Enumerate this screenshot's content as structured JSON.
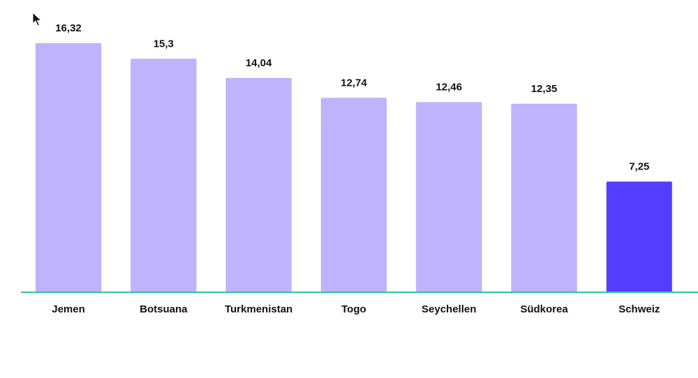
{
  "chart_data": {
    "type": "bar",
    "categories": [
      "Jemen",
      "Botsuana",
      "Turkmenistan",
      "Togo",
      "Seychellen",
      "Südkorea",
      "Schweiz"
    ],
    "values": [
      16.32,
      15.3,
      14.04,
      12.74,
      12.46,
      12.35,
      7.25
    ],
    "value_labels": [
      "16,32",
      "15,3",
      "14,04",
      "12,74",
      "12,46",
      "12,35",
      "7,25"
    ],
    "colors": [
      "#c0b3fe",
      "#c0b3fe",
      "#c0b3fe",
      "#c0b3fe",
      "#c0b3fe",
      "#c0b3fe",
      "#553dff"
    ],
    "baseline_color": "#2ec4a0"
  }
}
